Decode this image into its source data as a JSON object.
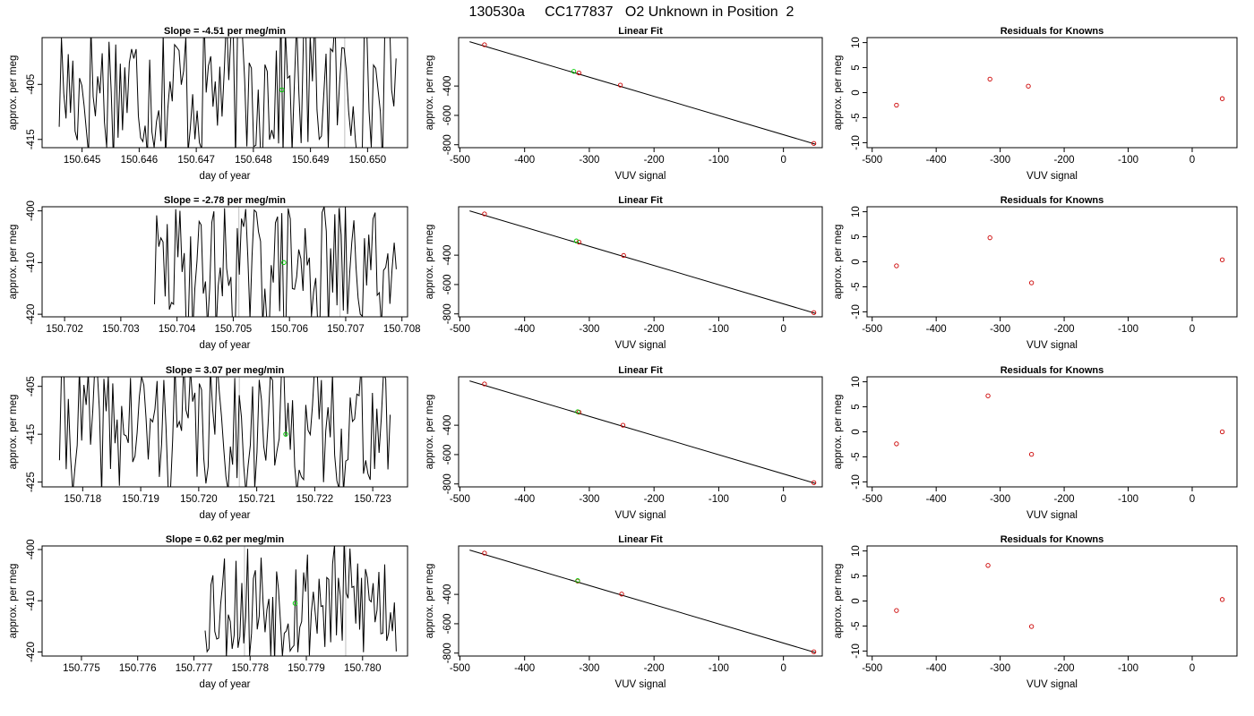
{
  "figure_title": "130530a     CC177837   O2 Unknown in Position  2",
  "colors": {
    "trace": "#000000",
    "known": "#cc0000",
    "unknown": "#00cc00",
    "gridline": "#bfbfbf",
    "frame": "#000000"
  },
  "chart_data": [
    {
      "type": "line",
      "title": "Slope =  -4.51  per meg/min",
      "xlabel": "day of year",
      "ylabel": "approx. per meg",
      "xlim": [
        150.6443,
        150.6507
      ],
      "ylim": [
        -416.5,
        -396.5
      ],
      "xticks": [
        "150.645",
        "150.646",
        "150.647",
        "150.648",
        "150.649",
        "150.650"
      ],
      "yticks": [
        "-405",
        "-415"
      ],
      "series": [
        {
          "x_start": 150.6446,
          "x_end": 150.6505,
          "seed": 17,
          "center": -405.5,
          "amplitude": 14,
          "n": 150
        }
      ],
      "marker": {
        "x": 150.6485,
        "y": -406.0
      },
      "vlines": [
        150.6496
      ]
    },
    {
      "type": "line",
      "title": "Linear Fit",
      "xlabel": "VUV signal",
      "ylabel": "approx. per meg",
      "xlim": [
        -502,
        60
      ],
      "ylim": [
        -820,
        -70
      ],
      "xticks": [
        "-500",
        "-400",
        "-300",
        "-200",
        "-100",
        "0"
      ],
      "yticks": [
        "-400",
        "-600",
        "-800"
      ],
      "fit_line": {
        "x": [
          -485,
          50
        ],
        "y": [
          -98,
          -797
        ]
      },
      "known_points": {
        "x": [
          -462,
          -316,
          -252,
          47
        ],
        "y": [
          -119,
          -311,
          -394,
          -791
        ]
      },
      "unknown_points": {
        "x": [
          -324
        ],
        "y": [
          -300
        ]
      }
    },
    {
      "type": "scatter",
      "title": "Residuals for Knowns",
      "xlabel": "VUV signal",
      "ylabel": "approx. per meg",
      "xlim": [
        -508,
        70
      ],
      "ylim": [
        -11,
        11
      ],
      "xticks": [
        "-500",
        "-400",
        "-300",
        "-200",
        "-100",
        "0"
      ],
      "yticks": [
        "-10",
        "-5",
        "0",
        "5",
        "10"
      ],
      "points": {
        "x": [
          -462,
          -316,
          -256,
          47
        ],
        "y": [
          -2.5,
          2.7,
          1.3,
          -1.2
        ]
      }
    },
    {
      "type": "line",
      "title": "Slope =  -2.78  per meg/min",
      "xlabel": "day of year",
      "ylabel": "approx. per meg",
      "xlim": [
        150.7016,
        150.7081
      ],
      "ylim": [
        -420.5,
        -399.2
      ],
      "xticks": [
        "150.702",
        "150.703",
        "150.704",
        "150.705",
        "150.706",
        "150.707",
        "150.708"
      ],
      "yticks": [
        "-400",
        "-410",
        "-420"
      ],
      "series": [
        {
          "x_start": 150.7036,
          "x_end": 150.7079,
          "seed": 29,
          "center": -411.5,
          "amplitude": 13,
          "n": 115
        }
      ],
      "marker": {
        "x": 150.7059,
        "y": -410.0
      },
      "vlines": [
        150.7051,
        150.7069
      ]
    },
    {
      "type": "line",
      "title": "Linear Fit",
      "xlabel": "VUV signal",
      "ylabel": "approx. per meg",
      "xlim": [
        -502,
        60
      ],
      "ylim": [
        -820,
        -70
      ],
      "xticks": [
        "-500",
        "-400",
        "-300",
        "-200",
        "-100",
        "0"
      ],
      "yticks": [
        "-400",
        "-600",
        "-800"
      ],
      "fit_line": {
        "x": [
          -485,
          50
        ],
        "y": [
          -98,
          -797
        ]
      },
      "known_points": {
        "x": [
          -462,
          -316,
          -247,
          47
        ],
        "y": [
          -119,
          -311,
          -402,
          -791
        ]
      },
      "unknown_points": {
        "x": [
          -320
        ],
        "y": [
          -303
        ]
      }
    },
    {
      "type": "scatter",
      "title": "Residuals for Knowns",
      "xlabel": "VUV signal",
      "ylabel": "approx. per meg",
      "xlim": [
        -508,
        70
      ],
      "ylim": [
        -11,
        11
      ],
      "xticks": [
        "-500",
        "-400",
        "-300",
        "-200",
        "-100",
        "0"
      ],
      "yticks": [
        "-10",
        "-5",
        "0",
        "5",
        "10"
      ],
      "points": {
        "x": [
          -462,
          -316,
          -251,
          47
        ],
        "y": [
          -0.8,
          4.8,
          -4.2,
          0.4
        ]
      }
    },
    {
      "type": "line",
      "title": "Slope =  3.07  per meg/min",
      "xlabel": "day of year",
      "ylabel": "approx. per meg",
      "xlim": [
        150.7173,
        150.7236
      ],
      "ylim": [
        -426.0,
        -403.0
      ],
      "xticks": [
        "150.718",
        "150.719",
        "150.720",
        "150.721",
        "150.722",
        "150.723"
      ],
      "yticks": [
        "-405",
        "-415",
        "-425"
      ],
      "series": [
        {
          "x_start": 150.7176,
          "x_end": 150.7233,
          "seed": 41,
          "center": -413.5,
          "amplitude": 14,
          "n": 150
        }
      ],
      "marker": {
        "x": 150.7215,
        "y": -415.0
      },
      "vlines": [
        150.7207
      ]
    },
    {
      "type": "line",
      "title": "Linear Fit",
      "xlabel": "VUV signal",
      "ylabel": "approx. per meg",
      "xlim": [
        -502,
        60
      ],
      "ylim": [
        -820,
        -70
      ],
      "xticks": [
        "-500",
        "-400",
        "-300",
        "-200",
        "-100",
        "0"
      ],
      "yticks": [
        "-400",
        "-600",
        "-800"
      ],
      "fit_line": {
        "x": [
          -485,
          50
        ],
        "y": [
          -98,
          -797
        ]
      },
      "known_points": {
        "x": [
          -462,
          -316,
          -248,
          47
        ],
        "y": [
          -119,
          -311,
          -400,
          -791
        ]
      },
      "unknown_points": {
        "x": [
          -318
        ],
        "y": [
          -308
        ]
      }
    },
    {
      "type": "scatter",
      "title": "Residuals for Knowns",
      "xlabel": "VUV signal",
      "ylabel": "approx. per meg",
      "xlim": [
        -508,
        70
      ],
      "ylim": [
        -11,
        11
      ],
      "xticks": [
        "-500",
        "-400",
        "-300",
        "-200",
        "-100",
        "0"
      ],
      "yticks": [
        "-10",
        "-5",
        "0",
        "5",
        "10"
      ],
      "points": {
        "x": [
          -462,
          -319,
          -251,
          47
        ],
        "y": [
          -2.4,
          7.2,
          -4.5,
          0.0
        ]
      }
    },
    {
      "type": "line",
      "title": "Slope =  0.62  per meg/min",
      "xlabel": "day of year",
      "ylabel": "approx. per meg",
      "xlim": [
        150.7743,
        150.7808
      ],
      "ylim": [
        -420.8,
        -399.3
      ],
      "xticks": [
        "150.775",
        "150.776",
        "150.777",
        "150.778",
        "150.779",
        "150.780"
      ],
      "yticks": [
        "-400",
        "-410",
        "-420"
      ],
      "series": [
        {
          "x_start": 150.7772,
          "x_end": 150.7806,
          "seed": 53,
          "center": -410.0,
          "amplitude": 12,
          "n": 100
        }
      ],
      "marker": {
        "x": 150.7788,
        "y": -410.5
      },
      "vlines": [
        150.7779,
        150.7797
      ]
    },
    {
      "type": "line",
      "title": "Linear Fit",
      "xlabel": "VUV signal",
      "ylabel": "approx. per meg",
      "xlim": [
        -502,
        60
      ],
      "ylim": [
        -820,
        -70
      ],
      "xticks": [
        "-500",
        "-400",
        "-300",
        "-200",
        "-100",
        "0"
      ],
      "yticks": [
        "-400",
        "-600",
        "-800"
      ],
      "fit_line": {
        "x": [
          -485,
          50
        ],
        "y": [
          -98,
          -797
        ]
      },
      "known_points": {
        "x": [
          -462,
          -318,
          -250,
          47
        ],
        "y": [
          -119,
          -309,
          -398,
          -791
        ]
      },
      "unknown_points": {
        "x": [
          -318
        ],
        "y": [
          -306
        ]
      }
    },
    {
      "type": "scatter",
      "title": "Residuals for Knowns",
      "xlabel": "VUV signal",
      "ylabel": "approx. per meg",
      "xlim": [
        -508,
        70
      ],
      "ylim": [
        -11,
        11
      ],
      "xticks": [
        "-500",
        "-400",
        "-300",
        "-200",
        "-100",
        "0"
      ],
      "yticks": [
        "-10",
        "-5",
        "0",
        "5",
        "10"
      ],
      "points": {
        "x": [
          -462,
          -319,
          -251,
          47
        ],
        "y": [
          -1.9,
          7.1,
          -5.1,
          0.3
        ]
      }
    }
  ]
}
